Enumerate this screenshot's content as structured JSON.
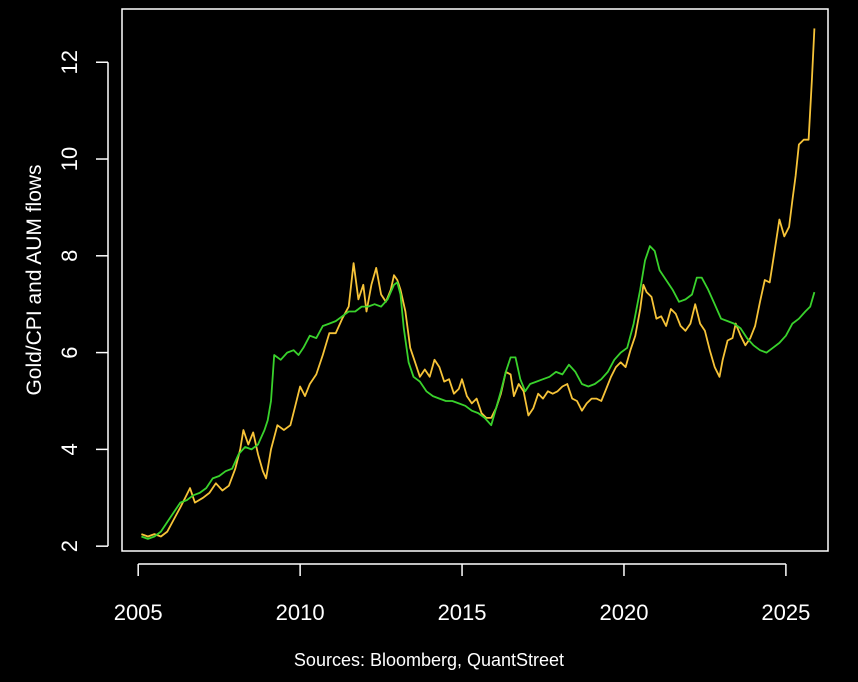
{
  "chart_data": {
    "type": "line",
    "title": "",
    "xlabel": "",
    "ylabel": "Gold/CPI and AUM flows",
    "source_note": "Sources: Bloomberg, QuantStreet",
    "xlim": [
      2004.5,
      2026.3
    ],
    "ylim": [
      1.9,
      13.1
    ],
    "xticks": [
      2005,
      2010,
      2015,
      2020,
      2025
    ],
    "yticks": [
      2,
      4,
      6,
      8,
      10,
      12
    ],
    "grid": false,
    "legend": "none",
    "series": [
      {
        "color": "#f6c338",
        "points": [
          [
            2005.1,
            2.25
          ],
          [
            2005.3,
            2.2
          ],
          [
            2005.5,
            2.25
          ],
          [
            2005.7,
            2.2
          ],
          [
            2005.9,
            2.3
          ],
          [
            2006.1,
            2.55
          ],
          [
            2006.3,
            2.8
          ],
          [
            2006.45,
            3.0
          ],
          [
            2006.6,
            3.2
          ],
          [
            2006.75,
            2.9
          ],
          [
            2007.0,
            3.0
          ],
          [
            2007.2,
            3.1
          ],
          [
            2007.4,
            3.3
          ],
          [
            2007.6,
            3.15
          ],
          [
            2007.8,
            3.25
          ],
          [
            2008.0,
            3.6
          ],
          [
            2008.15,
            4.0
          ],
          [
            2008.25,
            4.4
          ],
          [
            2008.4,
            4.1
          ],
          [
            2008.55,
            4.35
          ],
          [
            2008.7,
            3.9
          ],
          [
            2008.85,
            3.55
          ],
          [
            2008.95,
            3.4
          ],
          [
            2009.1,
            4.0
          ],
          [
            2009.3,
            4.5
          ],
          [
            2009.5,
            4.4
          ],
          [
            2009.7,
            4.5
          ],
          [
            2009.85,
            4.9
          ],
          [
            2010.0,
            5.3
          ],
          [
            2010.15,
            5.1
          ],
          [
            2010.3,
            5.35
          ],
          [
            2010.5,
            5.55
          ],
          [
            2010.7,
            5.95
          ],
          [
            2010.9,
            6.4
          ],
          [
            2011.1,
            6.4
          ],
          [
            2011.3,
            6.7
          ],
          [
            2011.5,
            6.95
          ],
          [
            2011.65,
            7.85
          ],
          [
            2011.8,
            7.1
          ],
          [
            2011.95,
            7.4
          ],
          [
            2012.05,
            6.85
          ],
          [
            2012.2,
            7.4
          ],
          [
            2012.35,
            7.75
          ],
          [
            2012.5,
            7.2
          ],
          [
            2012.65,
            7.05
          ],
          [
            2012.8,
            7.3
          ],
          [
            2012.9,
            7.6
          ],
          [
            2013.0,
            7.5
          ],
          [
            2013.1,
            7.3
          ],
          [
            2013.25,
            6.85
          ],
          [
            2013.4,
            6.1
          ],
          [
            2013.55,
            5.8
          ],
          [
            2013.7,
            5.5
          ],
          [
            2013.85,
            5.65
          ],
          [
            2014.0,
            5.5
          ],
          [
            2014.15,
            5.85
          ],
          [
            2014.3,
            5.7
          ],
          [
            2014.45,
            5.4
          ],
          [
            2014.6,
            5.45
          ],
          [
            2014.75,
            5.15
          ],
          [
            2014.9,
            5.25
          ],
          [
            2015.0,
            5.45
          ],
          [
            2015.15,
            5.1
          ],
          [
            2015.3,
            4.95
          ],
          [
            2015.45,
            5.05
          ],
          [
            2015.6,
            4.75
          ],
          [
            2015.75,
            4.65
          ],
          [
            2015.9,
            4.65
          ],
          [
            2016.05,
            4.85
          ],
          [
            2016.2,
            5.15
          ],
          [
            2016.35,
            5.6
          ],
          [
            2016.5,
            5.55
          ],
          [
            2016.6,
            5.1
          ],
          [
            2016.75,
            5.35
          ],
          [
            2016.9,
            5.2
          ],
          [
            2017.05,
            4.7
          ],
          [
            2017.2,
            4.85
          ],
          [
            2017.35,
            5.15
          ],
          [
            2017.5,
            5.05
          ],
          [
            2017.65,
            5.2
          ],
          [
            2017.8,
            5.15
          ],
          [
            2017.95,
            5.2
          ],
          [
            2018.1,
            5.3
          ],
          [
            2018.25,
            5.35
          ],
          [
            2018.4,
            5.05
          ],
          [
            2018.55,
            5.0
          ],
          [
            2018.7,
            4.8
          ],
          [
            2018.85,
            4.95
          ],
          [
            2019.0,
            5.05
          ],
          [
            2019.15,
            5.05
          ],
          [
            2019.3,
            5.0
          ],
          [
            2019.45,
            5.25
          ],
          [
            2019.6,
            5.5
          ],
          [
            2019.75,
            5.7
          ],
          [
            2019.9,
            5.8
          ],
          [
            2020.05,
            5.7
          ],
          [
            2020.2,
            6.05
          ],
          [
            2020.35,
            6.35
          ],
          [
            2020.5,
            6.9
          ],
          [
            2020.6,
            7.4
          ],
          [
            2020.7,
            7.25
          ],
          [
            2020.85,
            7.15
          ],
          [
            2021.0,
            6.7
          ],
          [
            2021.15,
            6.75
          ],
          [
            2021.3,
            6.55
          ],
          [
            2021.45,
            6.9
          ],
          [
            2021.6,
            6.8
          ],
          [
            2021.75,
            6.55
          ],
          [
            2021.9,
            6.45
          ],
          [
            2022.05,
            6.6
          ],
          [
            2022.2,
            7.0
          ],
          [
            2022.35,
            6.6
          ],
          [
            2022.5,
            6.45
          ],
          [
            2022.65,
            6.05
          ],
          [
            2022.8,
            5.7
          ],
          [
            2022.95,
            5.5
          ],
          [
            2023.05,
            5.85
          ],
          [
            2023.2,
            6.25
          ],
          [
            2023.35,
            6.3
          ],
          [
            2023.45,
            6.6
          ],
          [
            2023.6,
            6.35
          ],
          [
            2023.75,
            6.15
          ],
          [
            2023.9,
            6.3
          ],
          [
            2024.05,
            6.55
          ],
          [
            2024.2,
            7.05
          ],
          [
            2024.35,
            7.5
          ],
          [
            2024.5,
            7.45
          ],
          [
            2024.65,
            8.1
          ],
          [
            2024.8,
            8.75
          ],
          [
            2024.95,
            8.4
          ],
          [
            2025.1,
            8.6
          ],
          [
            2025.2,
            9.15
          ],
          [
            2025.3,
            9.65
          ],
          [
            2025.4,
            10.3
          ],
          [
            2025.55,
            10.4
          ],
          [
            2025.7,
            10.4
          ],
          [
            2025.8,
            11.6
          ],
          [
            2025.88,
            12.7
          ]
        ]
      },
      {
        "color": "#39d22c",
        "points": [
          [
            2005.1,
            2.2
          ],
          [
            2005.3,
            2.15
          ],
          [
            2005.5,
            2.2
          ],
          [
            2005.7,
            2.3
          ],
          [
            2005.9,
            2.5
          ],
          [
            2006.1,
            2.7
          ],
          [
            2006.3,
            2.9
          ],
          [
            2006.5,
            2.95
          ],
          [
            2006.7,
            3.05
          ],
          [
            2006.9,
            3.1
          ],
          [
            2007.1,
            3.2
          ],
          [
            2007.3,
            3.4
          ],
          [
            2007.5,
            3.45
          ],
          [
            2007.7,
            3.55
          ],
          [
            2007.9,
            3.6
          ],
          [
            2008.1,
            3.9
          ],
          [
            2008.3,
            4.05
          ],
          [
            2008.5,
            4.0
          ],
          [
            2008.7,
            4.1
          ],
          [
            2008.9,
            4.4
          ],
          [
            2009.0,
            4.6
          ],
          [
            2009.1,
            5.0
          ],
          [
            2009.2,
            5.95
          ],
          [
            2009.4,
            5.85
          ],
          [
            2009.6,
            6.0
          ],
          [
            2009.8,
            6.05
          ],
          [
            2009.95,
            5.95
          ],
          [
            2010.1,
            6.1
          ],
          [
            2010.3,
            6.35
          ],
          [
            2010.5,
            6.3
          ],
          [
            2010.7,
            6.55
          ],
          [
            2010.9,
            6.6
          ],
          [
            2011.1,
            6.65
          ],
          [
            2011.3,
            6.75
          ],
          [
            2011.5,
            6.85
          ],
          [
            2011.7,
            6.85
          ],
          [
            2011.9,
            6.95
          ],
          [
            2012.1,
            6.95
          ],
          [
            2012.3,
            7.0
          ],
          [
            2012.5,
            6.95
          ],
          [
            2012.7,
            7.1
          ],
          [
            2012.9,
            7.4
          ],
          [
            2013.0,
            7.45
          ],
          [
            2013.1,
            7.2
          ],
          [
            2013.2,
            6.5
          ],
          [
            2013.35,
            5.8
          ],
          [
            2013.5,
            5.5
          ],
          [
            2013.7,
            5.4
          ],
          [
            2013.9,
            5.2
          ],
          [
            2014.1,
            5.1
          ],
          [
            2014.3,
            5.05
          ],
          [
            2014.5,
            5.0
          ],
          [
            2014.7,
            5.0
          ],
          [
            2014.9,
            4.95
          ],
          [
            2015.1,
            4.9
          ],
          [
            2015.3,
            4.8
          ],
          [
            2015.5,
            4.75
          ],
          [
            2015.7,
            4.65
          ],
          [
            2015.9,
            4.5
          ],
          [
            2016.05,
            4.85
          ],
          [
            2016.2,
            5.2
          ],
          [
            2016.35,
            5.6
          ],
          [
            2016.5,
            5.9
          ],
          [
            2016.65,
            5.9
          ],
          [
            2016.8,
            5.45
          ],
          [
            2016.95,
            5.2
          ],
          [
            2017.1,
            5.35
          ],
          [
            2017.3,
            5.4
          ],
          [
            2017.5,
            5.45
          ],
          [
            2017.7,
            5.5
          ],
          [
            2017.9,
            5.6
          ],
          [
            2018.1,
            5.55
          ],
          [
            2018.3,
            5.75
          ],
          [
            2018.5,
            5.6
          ],
          [
            2018.7,
            5.35
          ],
          [
            2018.9,
            5.3
          ],
          [
            2019.1,
            5.35
          ],
          [
            2019.3,
            5.45
          ],
          [
            2019.5,
            5.6
          ],
          [
            2019.7,
            5.85
          ],
          [
            2019.9,
            6.0
          ],
          [
            2020.1,
            6.1
          ],
          [
            2020.3,
            6.6
          ],
          [
            2020.5,
            7.3
          ],
          [
            2020.65,
            7.9
          ],
          [
            2020.8,
            8.2
          ],
          [
            2020.95,
            8.1
          ],
          [
            2021.1,
            7.7
          ],
          [
            2021.3,
            7.5
          ],
          [
            2021.5,
            7.3
          ],
          [
            2021.7,
            7.05
          ],
          [
            2021.9,
            7.1
          ],
          [
            2022.1,
            7.2
          ],
          [
            2022.25,
            7.55
          ],
          [
            2022.4,
            7.55
          ],
          [
            2022.6,
            7.3
          ],
          [
            2022.8,
            7.0
          ],
          [
            2023.0,
            6.7
          ],
          [
            2023.2,
            6.65
          ],
          [
            2023.4,
            6.6
          ],
          [
            2023.6,
            6.5
          ],
          [
            2023.8,
            6.3
          ],
          [
            2024.0,
            6.15
          ],
          [
            2024.2,
            6.05
          ],
          [
            2024.4,
            6.0
          ],
          [
            2024.6,
            6.1
          ],
          [
            2024.8,
            6.2
          ],
          [
            2025.0,
            6.35
          ],
          [
            2025.2,
            6.6
          ],
          [
            2025.4,
            6.7
          ],
          [
            2025.6,
            6.85
          ],
          [
            2025.75,
            6.95
          ],
          [
            2025.88,
            7.25
          ]
        ]
      }
    ]
  }
}
